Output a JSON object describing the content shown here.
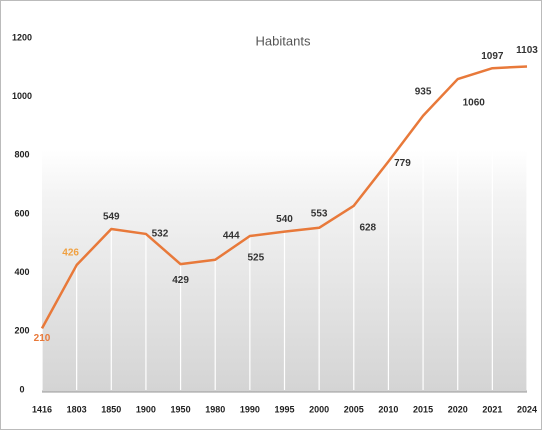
{
  "chart_data": {
    "type": "line",
    "title": "Habitants",
    "categories": [
      "1416",
      "1803",
      "1850",
      "1900",
      "1950",
      "1980",
      "1990",
      "1995",
      "2000",
      "2005",
      "2010",
      "2015",
      "2020",
      "2021",
      "2024"
    ],
    "series": [
      {
        "name": "Habitants",
        "color": "#e8793a",
        "values": [
          210,
          426,
          549,
          532,
          429,
          444,
          525,
          540,
          553,
          628,
          779,
          935,
          1060,
          1097,
          1103
        ],
        "label_colors": [
          "#e8793a",
          "#f0a040",
          "#333333",
          "#333333",
          "#333333",
          "#333333",
          "#333333",
          "#333333",
          "#333333",
          "#333333",
          "#333333",
          "#333333",
          "#333333",
          "#333333",
          "#333333"
        ]
      }
    ],
    "ylim": [
      0,
      1200
    ],
    "yticks": [
      0,
      200,
      400,
      600,
      800,
      1000,
      1200
    ],
    "grid": false
  }
}
